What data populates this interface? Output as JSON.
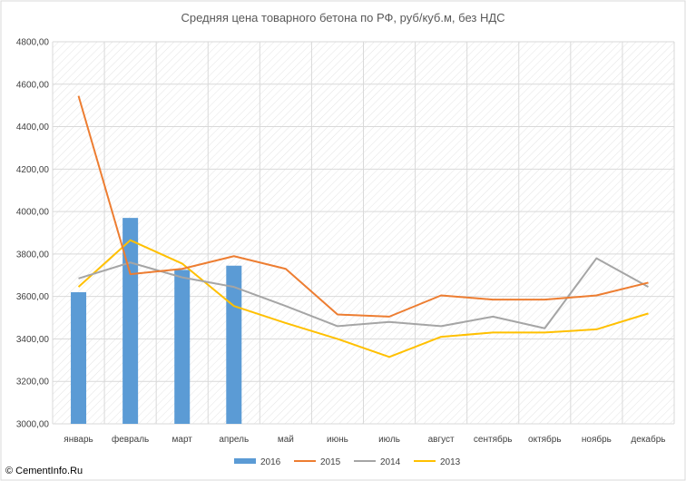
{
  "chart_data": {
    "type": "bar+line",
    "title": "Средняя цена товарного бетона по РФ, руб/куб.м, без НДС",
    "categories": [
      "январь",
      "февраль",
      "март",
      "апрель",
      "май",
      "июнь",
      "июль",
      "август",
      "сентябрь",
      "октябрь",
      "ноябрь",
      "декабрь"
    ],
    "ylim": [
      3000,
      4800
    ],
    "yticks": [
      "3000,00",
      "3200,00",
      "3400,00",
      "3600,00",
      "3800,00",
      "4000,00",
      "4200,00",
      "4400,00",
      "4600,00",
      "4800,00"
    ],
    "grid": true,
    "legend_position": "bottom",
    "series": [
      {
        "name": "2016",
        "kind": "bar",
        "color": "#5B9BD5",
        "values": [
          3620,
          3970,
          3725,
          3745,
          null,
          null,
          null,
          null,
          null,
          null,
          null,
          null
        ]
      },
      {
        "name": "2015",
        "kind": "line",
        "color": "#ED7D31",
        "values": [
          4545,
          3705,
          3730,
          3790,
          3730,
          3515,
          3505,
          3605,
          3585,
          3585,
          3605,
          3665
        ]
      },
      {
        "name": "2014",
        "kind": "line",
        "color": "#A5A5A5",
        "values": [
          3685,
          3760,
          3690,
          3645,
          3555,
          3460,
          3480,
          3460,
          3505,
          3450,
          3780,
          3645
        ]
      },
      {
        "name": "2013",
        "kind": "line",
        "color": "#FFC000",
        "values": [
          3645,
          3865,
          3755,
          3555,
          3475,
          3400,
          3315,
          3410,
          3430,
          3430,
          3445,
          3520
        ]
      }
    ]
  },
  "watermark": "© CementInfo.Ru"
}
